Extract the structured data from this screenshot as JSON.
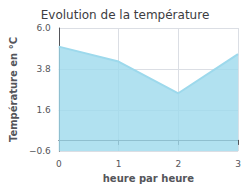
{
  "chart_data": {
    "type": "area",
    "title": "Evolution de la température",
    "x_label": "heure par heure",
    "y_label": "Température en °C",
    "x": [
      0,
      1,
      2,
      3
    ],
    "values": [
      5.0,
      4.2,
      2.5,
      4.6
    ],
    "color": "#9DD9EC",
    "xlim": [
      0,
      3
    ],
    "xticks": [
      0,
      1,
      2,
      3
    ],
    "ylim": [
      -0.6,
      6.0
    ],
    "yticks": [
      {
        "value": -0.6,
        "label": "−0.6"
      },
      1.6,
      3.8,
      {
        "value": 6.0,
        "label": "6.0"
      }
    ],
    "grid": true
  }
}
